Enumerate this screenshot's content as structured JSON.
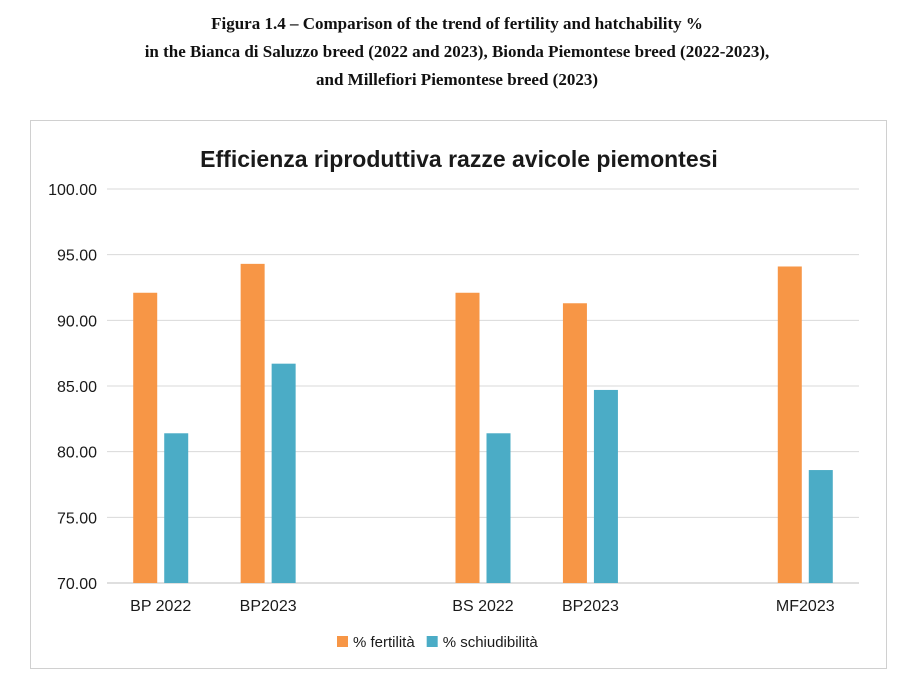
{
  "caption": {
    "line1": "Figura 1.4 – Comparison of the trend of fertility and hatchability %",
    "line2": "in the Bianca di Saluzzo breed (2022 and 2023), Bionda Piemontese breed (2022-2023),",
    "line3": "and Millefiori Piemontese breed (2023)"
  },
  "chart_data": {
    "type": "bar",
    "title": "Efficienza riproduttiva razze avicole piemontesi",
    "xlabel": "",
    "ylabel": "",
    "ylim": [
      70,
      100
    ],
    "yticks": [
      "70.00",
      "75.00",
      "80.00",
      "85.00",
      "90.00",
      "95.00",
      "100.00"
    ],
    "grid": true,
    "legend": "bottom",
    "categories": [
      "BP 2022",
      "BP2023",
      "",
      "BS 2022",
      "BP2023",
      "",
      "MF2023"
    ],
    "series": [
      {
        "name": "% fertilità",
        "color": "#F79646",
        "values": [
          92.1,
          94.3,
          null,
          92.1,
          91.3,
          null,
          94.1
        ]
      },
      {
        "name": "% schiudibilità",
        "color": "#4BACC6",
        "values": [
          81.4,
          86.7,
          null,
          81.4,
          84.7,
          null,
          78.6
        ]
      }
    ]
  }
}
